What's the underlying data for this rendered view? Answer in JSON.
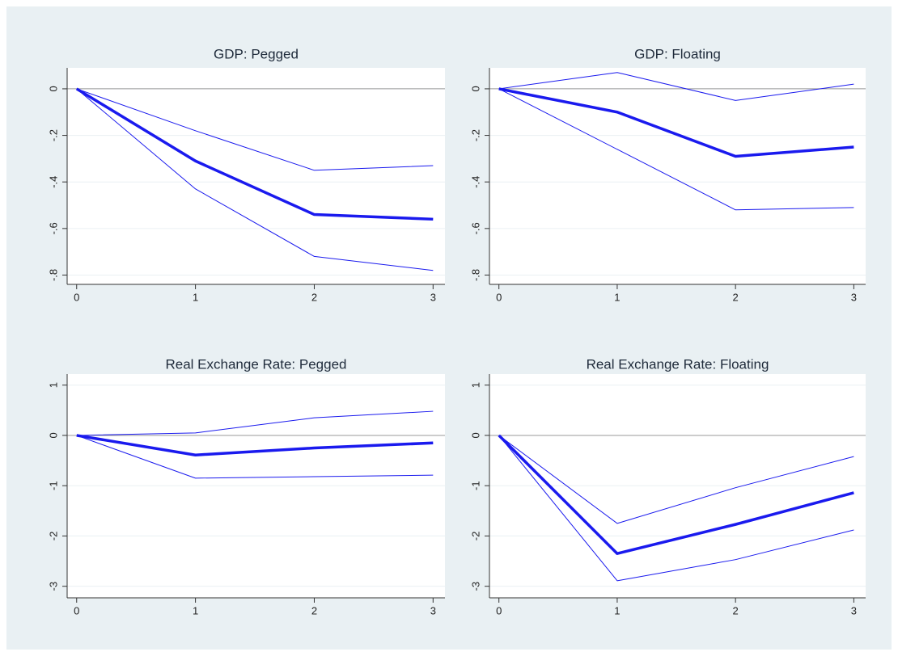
{
  "chart_data": [
    {
      "type": "line",
      "title": "GDP: Pegged",
      "x": [
        0,
        1,
        2,
        3
      ],
      "xlim": [
        -0.08,
        3.1
      ],
      "xticks": [
        0,
        1,
        2,
        3
      ],
      "ylim": [
        -0.84,
        0.09
      ],
      "yticks": [
        {
          "value": -0.8,
          "label": "-.8"
        },
        {
          "value": -0.6,
          "label": "-.6"
        },
        {
          "value": -0.4,
          "label": "-.4"
        },
        {
          "value": -0.2,
          "label": "-.2"
        },
        0
      ],
      "grid": true,
      "yline": 0,
      "series": [
        {
          "color": "#1a1aee",
          "line_width": 3.5,
          "values": [
            0,
            -0.31,
            -0.54,
            -0.56
          ]
        },
        {
          "color": "#1a1aee",
          "line_width": 1,
          "values": [
            0,
            -0.18,
            -0.35,
            -0.33
          ]
        },
        {
          "color": "#1a1aee",
          "line_width": 1,
          "values": [
            0,
            -0.43,
            -0.72,
            -0.78
          ]
        }
      ]
    },
    {
      "type": "line",
      "title": "GDP: Floating",
      "x": [
        0,
        1,
        2,
        3
      ],
      "xlim": [
        -0.08,
        3.1
      ],
      "xticks": [
        0,
        1,
        2,
        3
      ],
      "ylim": [
        -0.84,
        0.09
      ],
      "yticks": [
        {
          "value": -0.8,
          "label": "-.8"
        },
        {
          "value": -0.6,
          "label": "-.6"
        },
        {
          "value": -0.4,
          "label": "-.4"
        },
        {
          "value": -0.2,
          "label": "-.2"
        },
        0
      ],
      "grid": true,
      "yline": 0,
      "series": [
        {
          "color": "#1a1aee",
          "line_width": 3.5,
          "values": [
            0,
            -0.1,
            -0.29,
            -0.25
          ]
        },
        {
          "color": "#1a1aee",
          "line_width": 1,
          "values": [
            0,
            0.07,
            -0.05,
            0.02
          ]
        },
        {
          "color": "#1a1aee",
          "line_width": 1,
          "values": [
            0,
            -0.26,
            -0.52,
            -0.51
          ]
        }
      ]
    },
    {
      "type": "line",
      "title": "Real Exchange Rate: Pegged",
      "x": [
        0,
        1,
        2,
        3
      ],
      "xlim": [
        -0.08,
        3.1
      ],
      "xticks": [
        0,
        1,
        2,
        3
      ],
      "ylim": [
        -3.23,
        1.22
      ],
      "yticks": [
        -3,
        -2,
        -1,
        0,
        1
      ],
      "grid": true,
      "yline": 0,
      "series": [
        {
          "color": "#1a1aee",
          "line_width": 3.5,
          "values": [
            0,
            -0.39,
            -0.25,
            -0.15
          ]
        },
        {
          "color": "#1a1aee",
          "line_width": 1,
          "values": [
            0,
            0.05,
            0.35,
            0.48
          ]
        },
        {
          "color": "#1a1aee",
          "line_width": 1,
          "values": [
            0,
            -0.85,
            -0.82,
            -0.79
          ]
        }
      ]
    },
    {
      "type": "line",
      "title": "Real Exchange Rate: Floating",
      "x": [
        0,
        1,
        2,
        3
      ],
      "xlim": [
        -0.08,
        3.1
      ],
      "xticks": [
        0,
        1,
        2,
        3
      ],
      "ylim": [
        -3.23,
        1.22
      ],
      "yticks": [
        -3,
        -2,
        -1,
        0,
        1
      ],
      "grid": true,
      "yline": 0,
      "series": [
        {
          "color": "#1a1aee",
          "line_width": 3.5,
          "values": [
            0,
            -2.35,
            -1.77,
            -1.14
          ]
        },
        {
          "color": "#1a1aee",
          "line_width": 1,
          "values": [
            0,
            -1.75,
            -1.04,
            -0.42
          ]
        },
        {
          "color": "#1a1aee",
          "line_width": 1,
          "values": [
            0,
            -2.89,
            -2.47,
            -1.88
          ]
        }
      ]
    }
  ]
}
